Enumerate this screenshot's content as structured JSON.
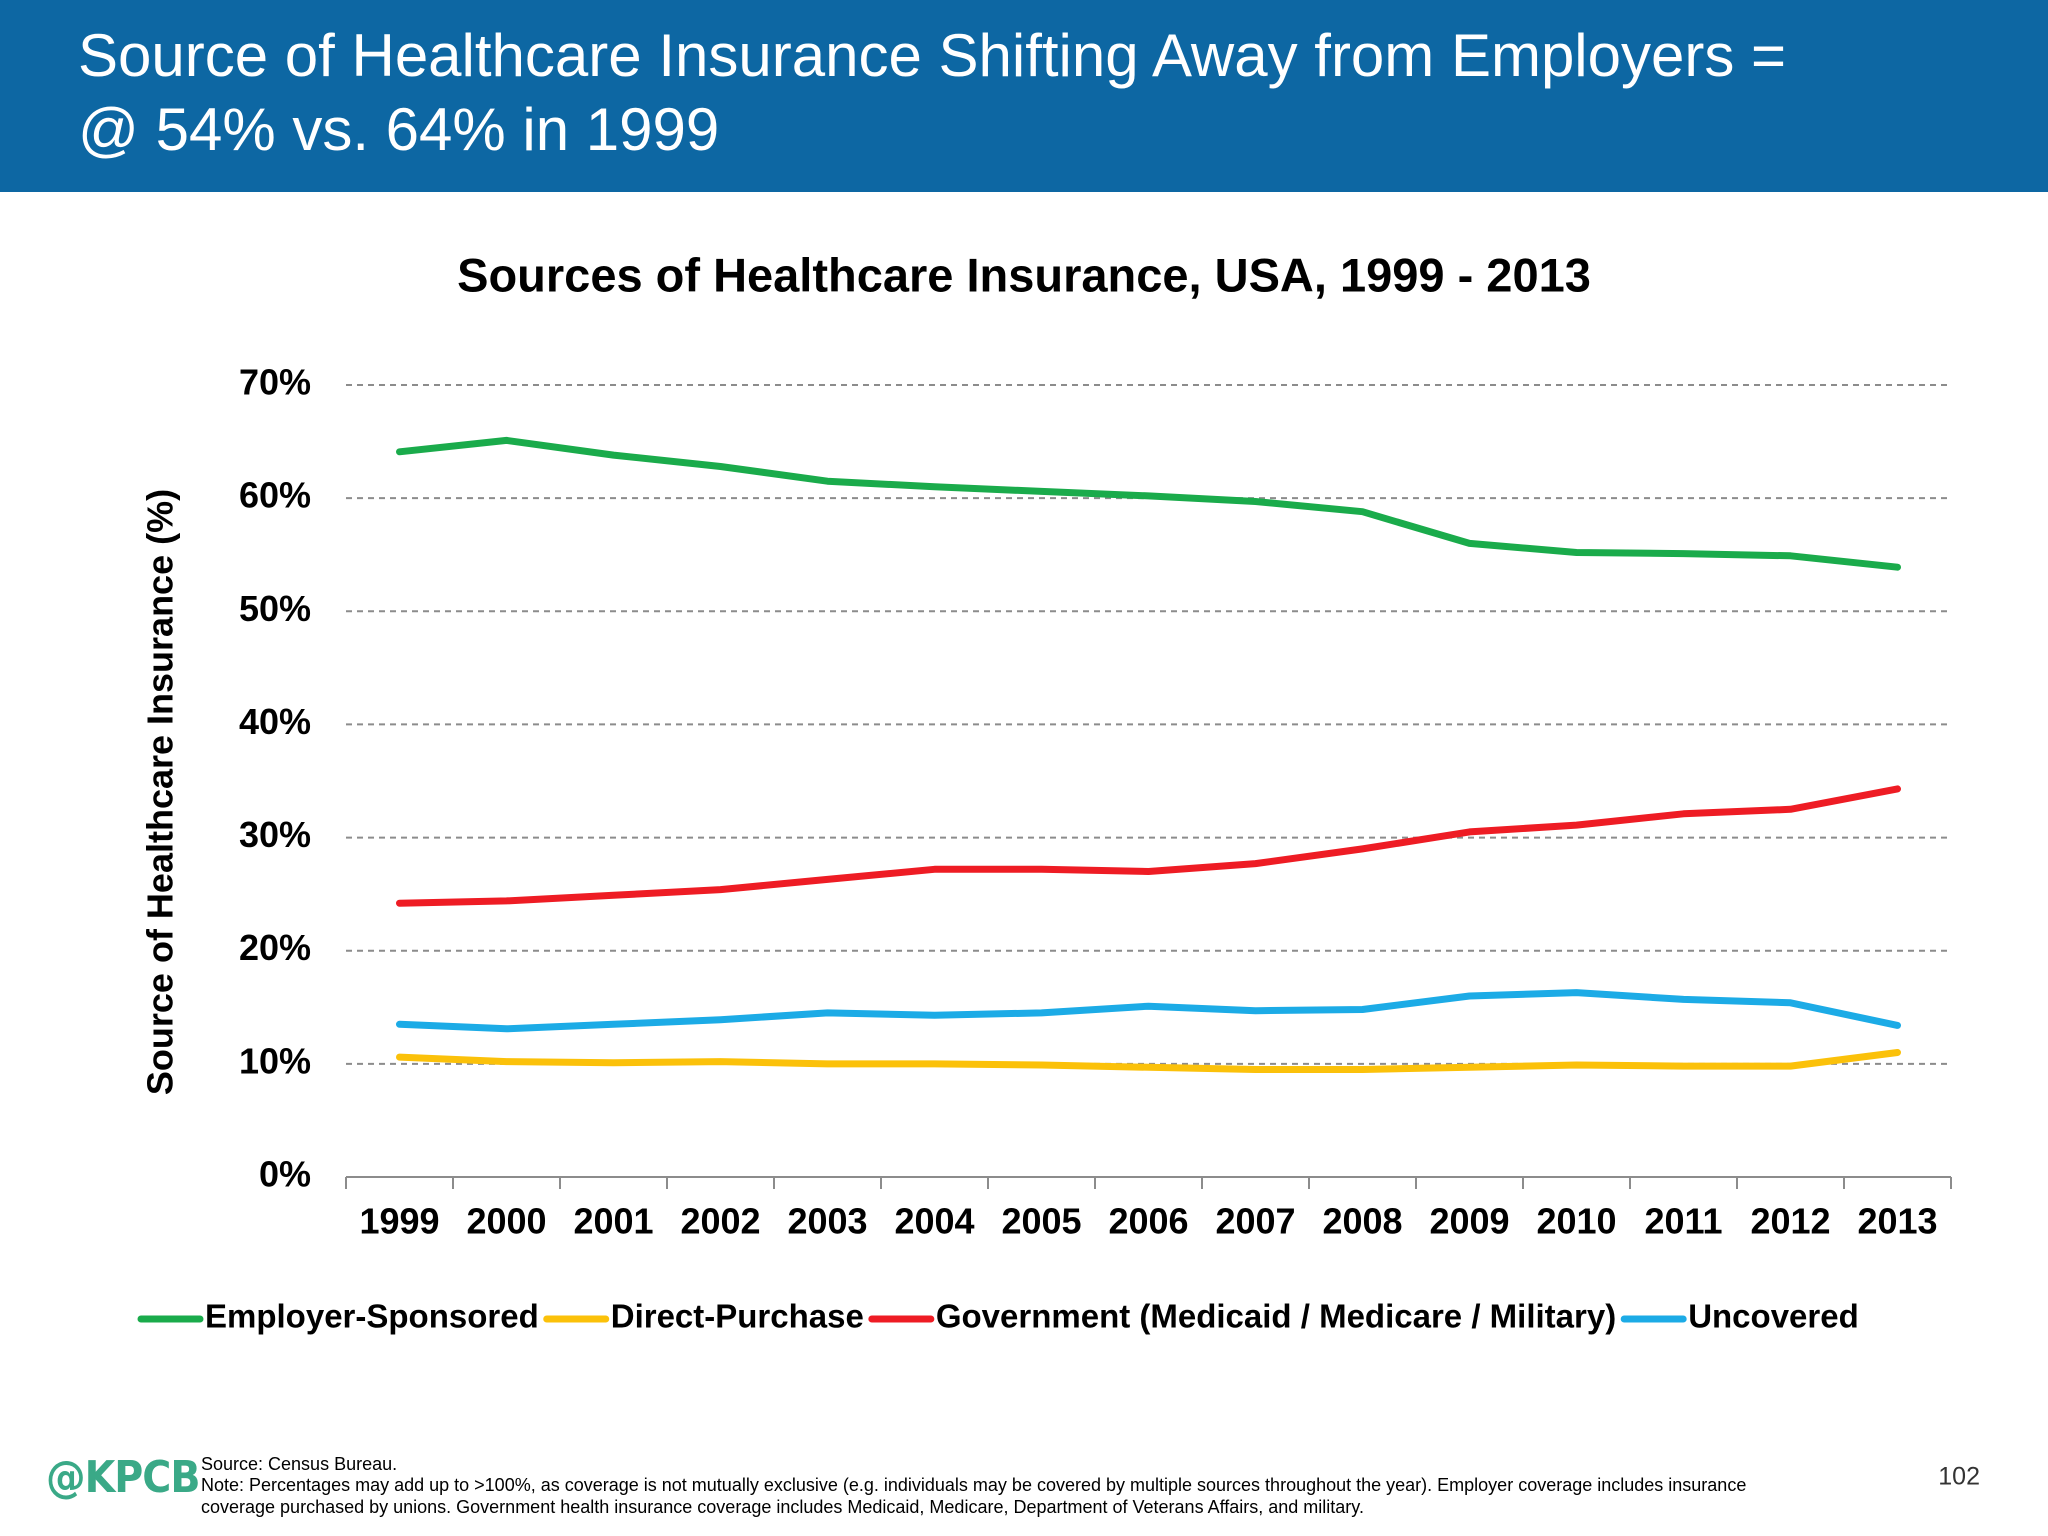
{
  "header": {
    "title": [
      "Source of Healthcare Insurance Shifting Away from Employers =",
      "@ 54% vs. 64% in 1999"
    ]
  },
  "chart_data": {
    "type": "line",
    "title": "Sources of Healthcare Insurance, USA, 1999 - 2013",
    "y_label": "Source of Healthcare Insurance (%)",
    "categories": [
      "1999",
      "2000",
      "2001",
      "2002",
      "2003",
      "2004",
      "2005",
      "2006",
      "2007",
      "2008",
      "2009",
      "2010",
      "2011",
      "2012",
      "2013"
    ],
    "series": [
      {
        "name": "Employer-Sponsored",
        "color": "#1aab4b",
        "values": [
          64.1,
          65.1,
          63.8,
          62.8,
          61.5,
          61.0,
          60.6,
          60.2,
          59.7,
          58.8,
          56.0,
          55.2,
          55.1,
          54.9,
          53.9
        ]
      },
      {
        "name": "Direct-Purchase",
        "color": "#fbc10a",
        "values": [
          10.6,
          10.2,
          10.1,
          10.2,
          10.0,
          10.0,
          9.9,
          9.7,
          9.5,
          9.5,
          9.7,
          9.9,
          9.8,
          9.8,
          11.0
        ]
      },
      {
        "name": "Government (Medicaid / Medicare / Military)",
        "color": "#ee1c24",
        "values": [
          24.2,
          24.4,
          24.9,
          25.4,
          26.3,
          27.2,
          27.2,
          27.0,
          27.7,
          29.0,
          30.5,
          31.1,
          32.1,
          32.5,
          34.3
        ]
      },
      {
        "name": "Uncovered",
        "color": "#1cabe6",
        "values": [
          13.5,
          13.1,
          13.5,
          13.9,
          14.5,
          14.3,
          14.5,
          15.1,
          14.7,
          14.8,
          16.0,
          16.3,
          15.7,
          15.4,
          13.4
        ]
      }
    ],
    "ylim": [
      0,
      70
    ],
    "yticks": [
      {
        "value": 0,
        "label": "0%"
      },
      {
        "value": 10,
        "label": "10%"
      },
      {
        "value": 20,
        "label": "20%"
      },
      {
        "value": 30,
        "label": "30%"
      },
      {
        "value": 40,
        "label": "40%"
      },
      {
        "value": 50,
        "label": "50%"
      },
      {
        "value": 60,
        "label": "60%"
      },
      {
        "value": 70,
        "label": "70%"
      }
    ],
    "grid": true,
    "legend": "bottom"
  },
  "footer": {
    "logo": "@KPCB",
    "source": "Source: Census Bureau.",
    "note": [
      "Note: Percentages may add up to >100%, as coverage is not mutually exclusive (e.g. individuals may be covered by multiple sources throughout the year). Employer coverage includes insurance",
      "coverage purchased by unions. Government health insurance coverage includes Medicaid, Medicare, Department of Veterans Affairs, and military."
    ],
    "page": "102"
  }
}
